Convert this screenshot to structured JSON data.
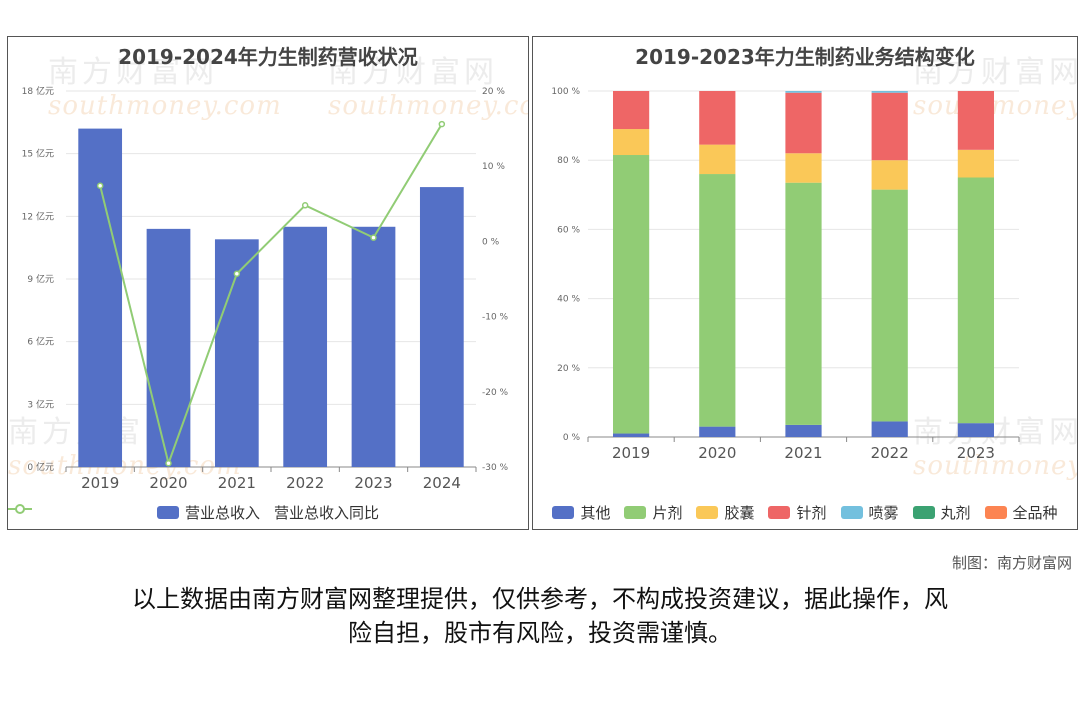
{
  "chart_data": [
    {
      "type": "bar",
      "title": "2019-2024年力生制药营收状况",
      "categories": [
        "2019",
        "2020",
        "2021",
        "2022",
        "2023",
        "2024"
      ],
      "y_ticks": [
        "0 亿元",
        "3 亿元",
        "6 亿元",
        "9 亿元",
        "12 亿元",
        "15 亿元",
        "18 亿元"
      ],
      "ylim": [
        0,
        18
      ],
      "y2_ticks": [
        "-30 %",
        "-20 %",
        "-10 %",
        "0 %",
        "10 %",
        "20 %"
      ],
      "y2lim": [
        -30,
        20
      ],
      "grid": true,
      "legend_position": "bottom",
      "series": [
        {
          "name": "营业总收入",
          "type": "bar",
          "axis": "left",
          "values": [
            16.2,
            11.4,
            10.9,
            11.5,
            11.5,
            13.4
          ]
        },
        {
          "name": "营业总收入同比",
          "type": "line",
          "axis": "right",
          "values": [
            7.4,
            -29.5,
            -4.3,
            4.8,
            0.5,
            15.6
          ]
        }
      ]
    },
    {
      "type": "bar",
      "stacked": true,
      "title": "2019-2023年力生制药业务结构变化",
      "categories": [
        "2019",
        "2020",
        "2021",
        "2022",
        "2023"
      ],
      "y_ticks": [
        "0 %",
        "20 %",
        "40 %",
        "60 %",
        "80 %",
        "100 %"
      ],
      "ylim": [
        0,
        100
      ],
      "grid": true,
      "legend_position": "bottom",
      "series": [
        {
          "name": "其他",
          "values": [
            1,
            3,
            3.5,
            4.5,
            4
          ]
        },
        {
          "name": "片剂",
          "values": [
            80.5,
            73,
            70,
            67,
            71
          ]
        },
        {
          "name": "胶囊",
          "values": [
            7.5,
            8.5,
            8.5,
            8.5,
            8
          ]
        },
        {
          "name": "针剂",
          "values": [
            11,
            15.5,
            17.5,
            19.5,
            17
          ]
        },
        {
          "name": "喷雾",
          "values": [
            0,
            0,
            0.5,
            0.5,
            0
          ]
        },
        {
          "name": "丸剂",
          "values": [
            0,
            0,
            0,
            0,
            0
          ]
        },
        {
          "name": "全品种",
          "values": [
            0,
            0,
            0,
            0,
            0
          ]
        }
      ]
    }
  ],
  "colors": {
    "bar": "#5470c6",
    "line": "#91cc75",
    "stack": [
      "#5470c6",
      "#91cc75",
      "#fac858",
      "#ee6666",
      "#73c0de",
      "#3ba272",
      "#fc8452"
    ]
  },
  "watermark": {
    "cn": "南方财富网",
    "en": "southmoney.com"
  },
  "credit": "制图：南方财富网",
  "disclaimer_lines": [
    "以上数据由南方财富网整理提供，仅供参考，不构成投资建议，据此操作，风",
    "险自担，股市有风险，投资需谨慎。"
  ]
}
